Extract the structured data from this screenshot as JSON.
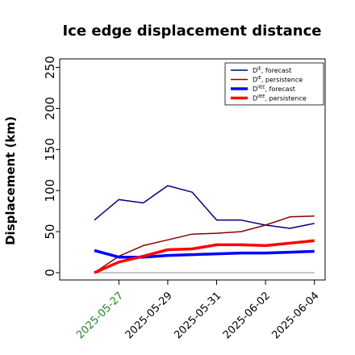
{
  "chart_data": {
    "type": "line",
    "title": "Ice edge displacement distance",
    "xlabel": "",
    "ylabel": "Displacement (km)",
    "ylim": [
      0,
      260
    ],
    "yticks": [
      0,
      50,
      100,
      150,
      200,
      250
    ],
    "x": [
      "2025-05-26",
      "2025-05-27",
      "2025-05-28",
      "2025-05-29",
      "2025-05-30",
      "2025-05-31",
      "2025-06-01",
      "2025-06-02",
      "2025-06-03",
      "2025-06-04"
    ],
    "xtick_labels": [
      "2025-05-27",
      "2025-05-29",
      "2025-05-31",
      "2025-06-02",
      "2025-06-04"
    ],
    "highlight_tick": "2025-05-27",
    "highlight_color": "#1a8a1a",
    "grid": false,
    "legend_position": "top-right",
    "series": [
      {
        "name": "forecast",
        "label_prefix": "D",
        "label_sup": "IE",
        "color": "#00008b",
        "width": "thin",
        "values": [
          64,
          89,
          85,
          106,
          98,
          64,
          64,
          58,
          54,
          60
        ]
      },
      {
        "name": "persistence",
        "label_prefix": "D",
        "label_sup": "IE",
        "color": "#8b0000",
        "width": "thin",
        "values": [
          0,
          20,
          33,
          40,
          47,
          48,
          50,
          58,
          68,
          69
        ]
      },
      {
        "name": "forecast",
        "label_prefix": "D",
        "label_sup": "IIEE",
        "color": "#0000ff",
        "width": "thick",
        "values": [
          27,
          19,
          19,
          21,
          22,
          23,
          24,
          24,
          25,
          26
        ]
      },
      {
        "name": "persistence",
        "label_prefix": "D",
        "label_sup": "IIEE",
        "color": "#ff0000",
        "width": "thick",
        "values": [
          0,
          13,
          20,
          28,
          29,
          34,
          34,
          33,
          36,
          39
        ]
      }
    ]
  }
}
